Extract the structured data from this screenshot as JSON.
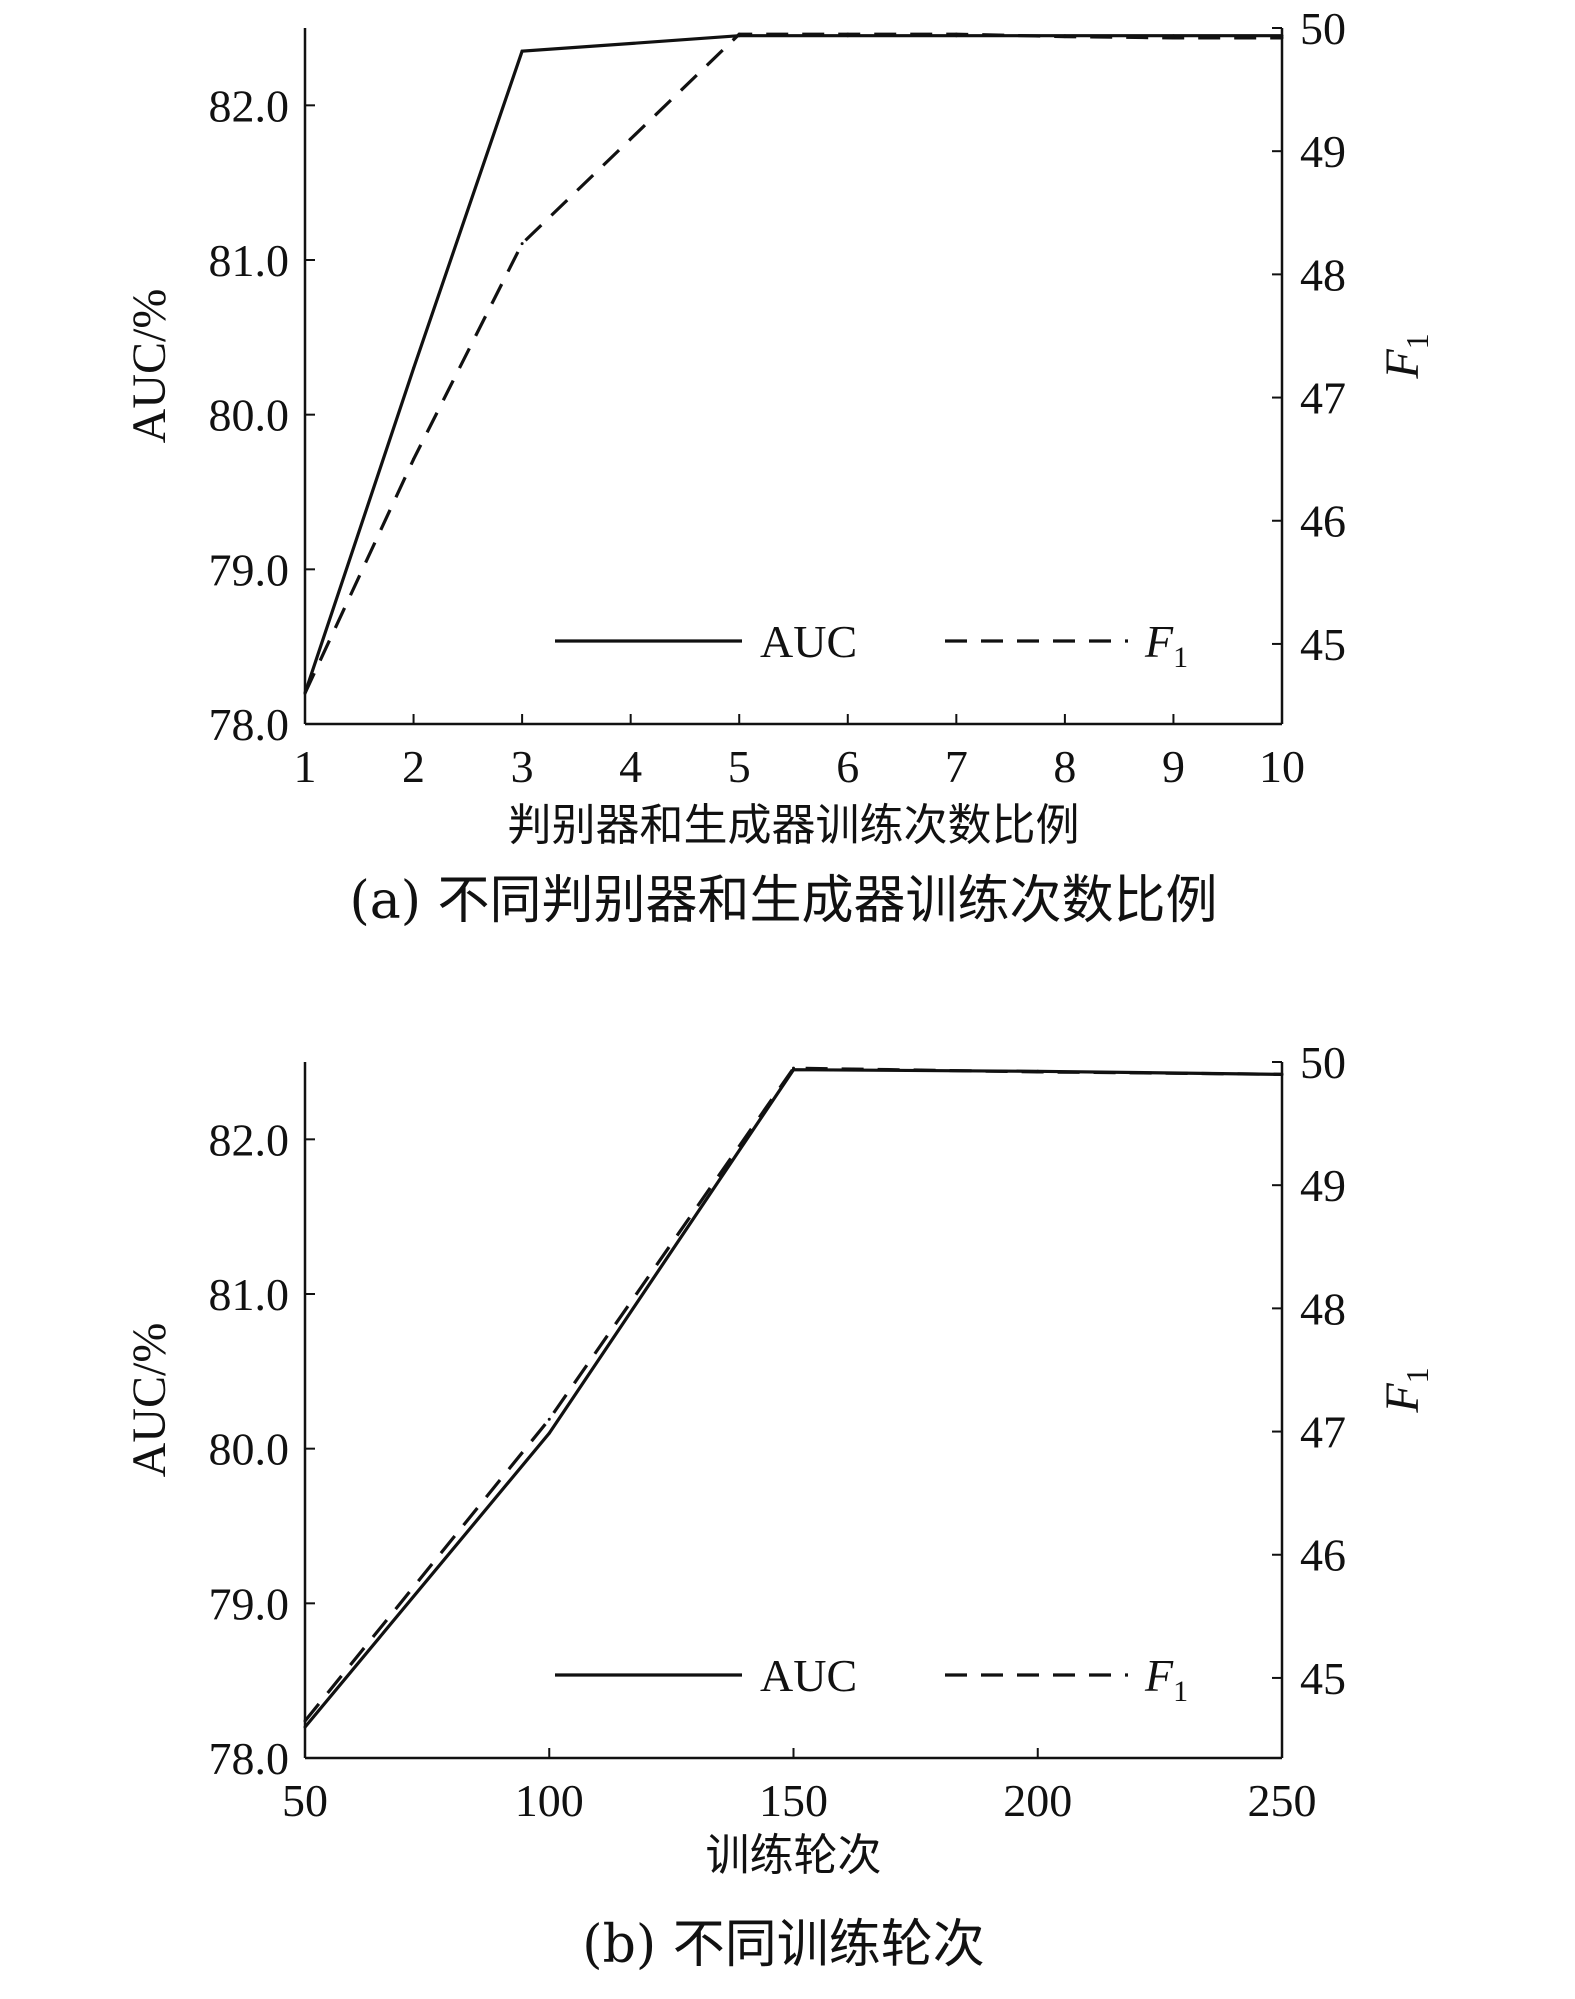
{
  "chart_data": [
    {
      "type": "line",
      "title": "(a) 不同判别器和生成器训练次数比例",
      "xlabel": "判别器和生成器训练次数比例",
      "ylabel": "AUC/%",
      "y2label": "F",
      "y2label_sub": "1",
      "x": [
        1,
        2,
        3,
        4,
        5,
        6,
        7,
        8,
        9,
        10
      ],
      "xlim": [
        1,
        10
      ],
      "xticks": [
        "1",
        "2",
        "3",
        "4",
        "5",
        "6",
        "7",
        "8",
        "9",
        "10"
      ],
      "ylim": [
        78.0,
        82.5
      ],
      "yticks": [
        "78.0",
        "79.0",
        "80.0",
        "81.0",
        "82.0"
      ],
      "y2lim": [
        44.35,
        50.0
      ],
      "y2ticks": [
        "45",
        "46",
        "47",
        "48",
        "49",
        "50"
      ],
      "grid": false,
      "legend": "bottom-center",
      "series": [
        {
          "name": "AUC",
          "axis": "left",
          "style": "solid",
          "values": [
            78.2,
            80.3,
            82.35,
            82.4,
            82.45,
            82.45,
            82.45,
            82.45,
            82.45,
            82.45
          ]
        },
        {
          "name": "F",
          "name_sub": "1",
          "axis": "right",
          "style": "dashed",
          "values": [
            44.6,
            46.5,
            48.25,
            49.1,
            49.95,
            49.95,
            49.95,
            49.93,
            49.92,
            49.92
          ]
        }
      ]
    },
    {
      "type": "line",
      "title": "(b) 不同训练轮次",
      "xlabel": "训练轮次",
      "ylabel": "AUC/%",
      "y2label": "F",
      "y2label_sub": "1",
      "x": [
        50,
        100,
        150,
        200,
        250
      ],
      "xlim": [
        50,
        250
      ],
      "xticks": [
        "50",
        "100",
        "150",
        "200",
        "250"
      ],
      "ylim": [
        78.0,
        82.5
      ],
      "yticks": [
        "78.0",
        "79.0",
        "80.0",
        "81.0",
        "82.0"
      ],
      "y2lim": [
        44.35,
        50.0
      ],
      "y2ticks": [
        "45",
        "46",
        "47",
        "48",
        "49",
        "50"
      ],
      "grid": false,
      "legend": "bottom-center",
      "series": [
        {
          "name": "AUC",
          "axis": "left",
          "style": "solid",
          "values": [
            78.2,
            80.1,
            82.45,
            82.44,
            82.42
          ]
        },
        {
          "name": "F",
          "name_sub": "1",
          "axis": "right",
          "style": "dashed",
          "values": [
            44.65,
            47.1,
            49.95,
            49.92,
            49.9
          ]
        }
      ]
    }
  ]
}
